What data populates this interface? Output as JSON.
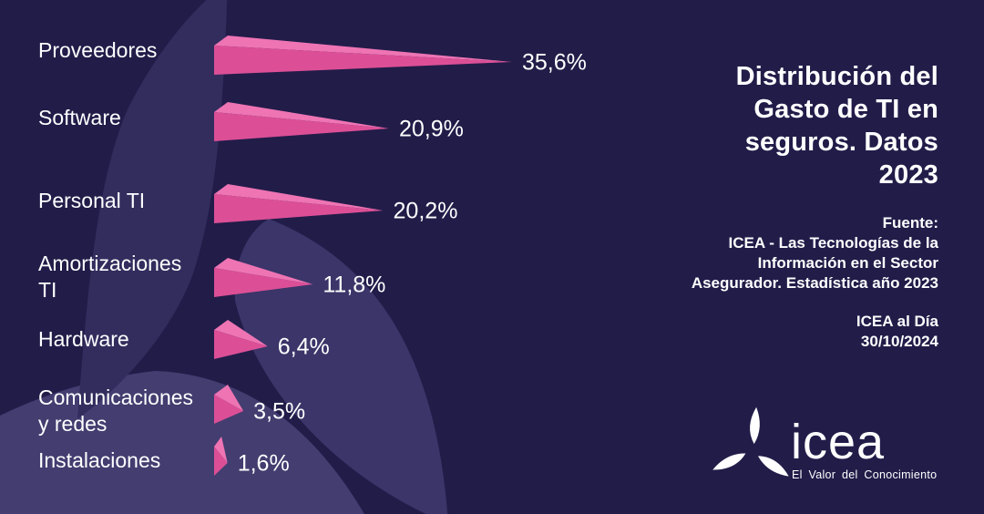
{
  "title": "Distribución del\nGasto de TI en\nseguros. Datos\n2023",
  "source": {
    "text": "Fuente:\nICEA - Las Tecnologías de la\nInformación en el Sector\nAsegurador. Estadística año 2023",
    "edition": "ICEA al Día\n30/10/2024"
  },
  "logo": {
    "name": "icea",
    "tagline": "El Valor del Conocimiento"
  },
  "colors": {
    "background": "#221c49",
    "leaf_dark": "#332d5e",
    "leaf_mid": "#3b3569",
    "leaf_light": "#433d70",
    "bar_front": "#dc4f96",
    "bar_top": "#ee74b4",
    "text": "#ffffff"
  },
  "chart_data": {
    "type": "bar",
    "orientation": "horizontal",
    "unit": "%",
    "title": "Distribución del Gasto de TI en seguros. Datos 2023",
    "categories": [
      "Proveedores",
      "Software",
      "Personal TI",
      "Amortizaciones\nTI",
      "Hardware",
      "Comunicaciones\ny redes",
      "Instalaciones"
    ],
    "values": [
      35.6,
      20.9,
      20.2,
      11.8,
      6.4,
      3.5,
      1.6
    ],
    "value_labels": [
      "35,6%",
      "20,9%",
      "20,2%",
      "11,8%",
      "6,4%",
      "3,5%",
      "1,6%"
    ],
    "xlim": [
      0,
      38
    ],
    "legend": "none",
    "grid": "off",
    "bar_color_front": "#dc4f96",
    "bar_color_top": "#ee74b4"
  }
}
